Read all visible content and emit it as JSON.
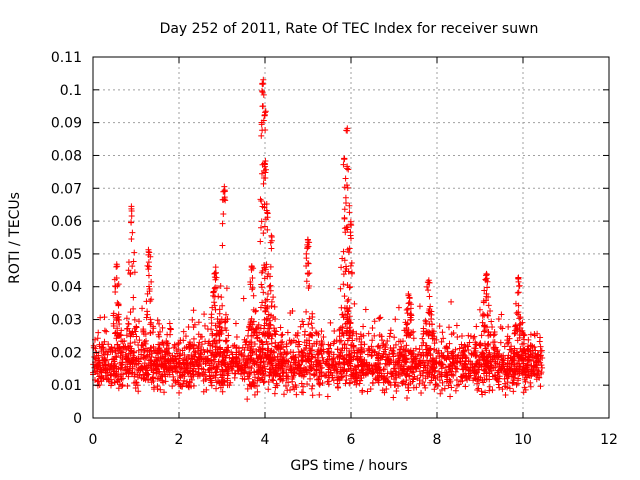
{
  "chart_data": {
    "type": "scatter",
    "title": "Day 252 of 2011, Rate Of TEC Index for receiver suwn",
    "xlabel": "GPS time / hours",
    "ylabel": "ROTI / TECUs",
    "xlim": [
      0,
      12
    ],
    "ylim": [
      0,
      0.11
    ],
    "xticks": [
      "0",
      "2",
      "4",
      "6",
      "8",
      "10",
      "12"
    ],
    "yticks": [
      "0",
      "0.01",
      "0.02",
      "0.03",
      "0.04",
      "0.05",
      "0.06",
      "0.07",
      "0.08",
      "0.09",
      "0.1",
      "0.11"
    ],
    "grid": true,
    "marker": "+",
    "color": "#ff0000",
    "x_extent": [
      0.0,
      10.45
    ],
    "baseline_band": [
      0.005,
      0.03
    ],
    "peaks": [
      {
        "x": 0.55,
        "y": 0.047
      },
      {
        "x": 0.9,
        "y": 0.065
      },
      {
        "x": 1.3,
        "y": 0.052
      },
      {
        "x": 2.85,
        "y": 0.046
      },
      {
        "x": 3.05,
        "y": 0.071
      },
      {
        "x": 3.7,
        "y": 0.047
      },
      {
        "x": 3.95,
        "y": 0.1035
      },
      {
        "x": 4.0,
        "y": 0.094
      },
      {
        "x": 4.0,
        "y": 0.079
      },
      {
        "x": 4.15,
        "y": 0.056
      },
      {
        "x": 5.0,
        "y": 0.055
      },
      {
        "x": 5.9,
        "y": 0.089
      },
      {
        "x": 5.85,
        "y": 0.08
      },
      {
        "x": 6.0,
        "y": 0.06
      },
      {
        "x": 7.35,
        "y": 0.038
      },
      {
        "x": 7.8,
        "y": 0.042
      },
      {
        "x": 9.15,
        "y": 0.044
      },
      {
        "x": 9.9,
        "y": 0.043
      }
    ]
  }
}
